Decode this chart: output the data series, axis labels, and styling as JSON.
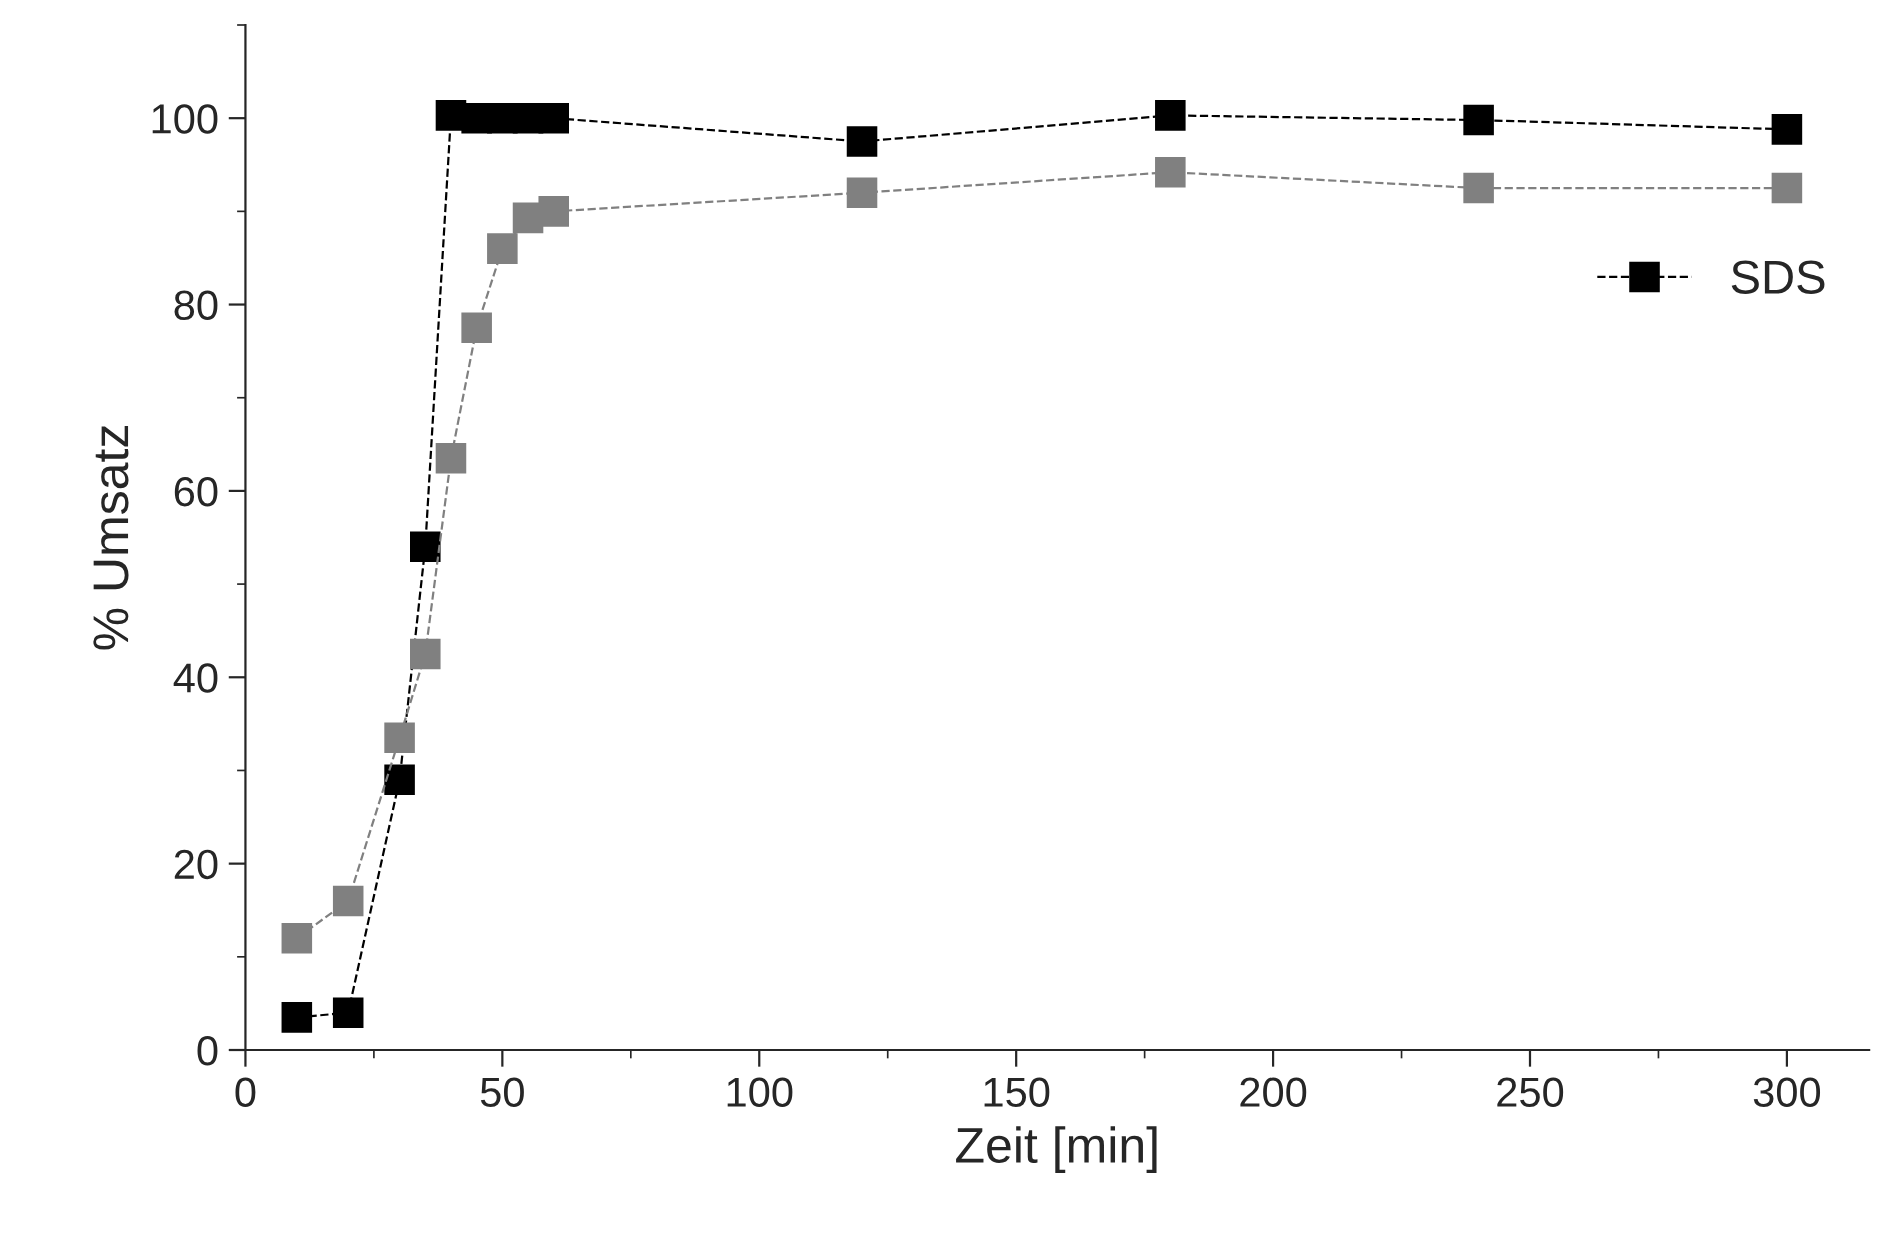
{
  "chart_data": {
    "type": "line",
    "xlabel": "Zeit [min]",
    "ylabel": "% Umsatz",
    "xlim": [
      0,
      316
    ],
    "xticks": [
      0,
      50,
      100,
      150,
      200,
      250,
      300
    ],
    "ylim": [
      0,
      110
    ],
    "yticks": [
      0,
      20,
      40,
      60,
      80,
      100
    ],
    "marker": "square",
    "line_style": "dashed",
    "grid": false,
    "legend": "right",
    "series": [
      {
        "name": "SDS",
        "color": "#000000",
        "x": [
          10,
          20,
          30,
          35,
          40,
          45,
          50,
          55,
          60,
          120,
          180,
          240,
          300
        ],
        "values": [
          3.5,
          4,
          29,
          54,
          100.3,
          100,
          100,
          100,
          100,
          97.5,
          100.3,
          99.8,
          98.8
        ]
      },
      {
        "color": "#808080",
        "x": [
          10,
          20,
          30,
          35,
          40,
          45,
          50,
          55,
          60,
          120,
          180,
          240,
          300
        ],
        "values": [
          12,
          16,
          33.5,
          42.5,
          63.5,
          77.5,
          86,
          89.3,
          90,
          92,
          94.2,
          92.5,
          92.5
        ]
      }
    ]
  }
}
